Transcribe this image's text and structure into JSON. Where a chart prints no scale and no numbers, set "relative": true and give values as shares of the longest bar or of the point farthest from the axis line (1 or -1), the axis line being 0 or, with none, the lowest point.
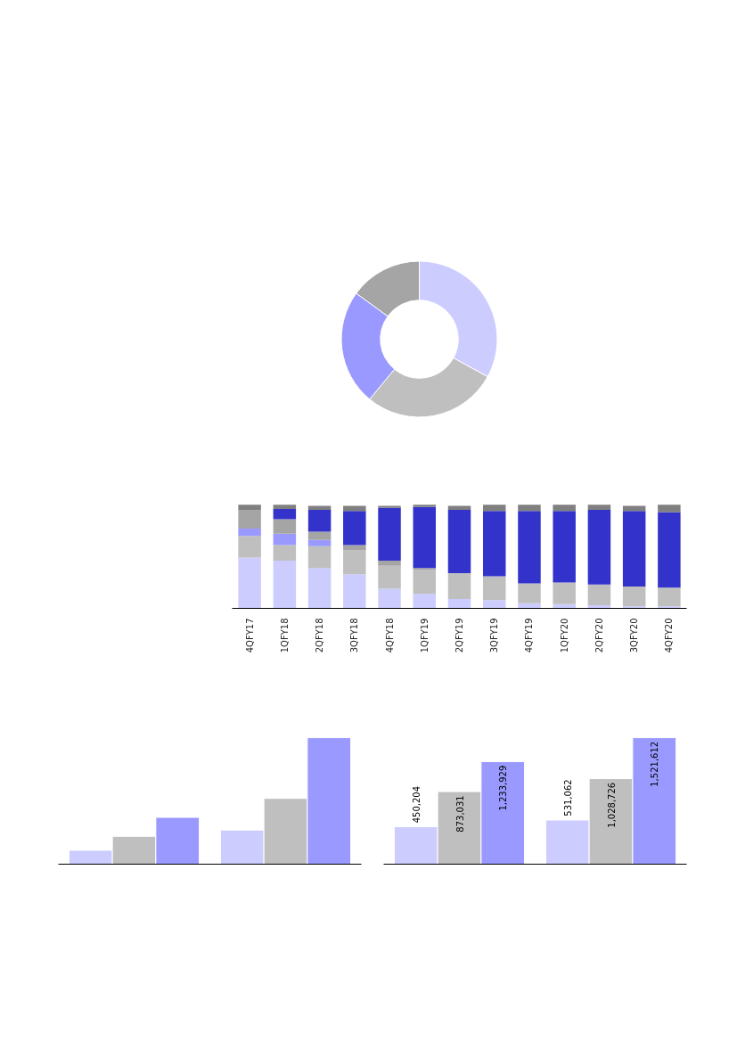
{
  "chart_data": [
    {
      "type": "donut",
      "categories": [
        null,
        null,
        null,
        null
      ],
      "values": [
        33,
        28,
        24,
        15
      ],
      "colors": [
        "#ccccff",
        "#bfbfbf",
        "#9999ff",
        "#a5a5a5"
      ]
    },
    {
      "type": "bar",
      "stacked": true,
      "relative": true,
      "categories": [
        "4QFY17",
        "1QFY18",
        "2QFY18",
        "3QFY18",
        "4QFY18",
        "1QFY19",
        "2QFY19",
        "3QFY19",
        "4QFY19",
        "1QFY20",
        "2QFY20",
        "3QFY20",
        "4QFY20"
      ],
      "series": [
        {
          "color": "#ccccff",
          "values": [
            0.49,
            0.46,
            0.39,
            0.33,
            0.19,
            0.14,
            0.09,
            0.08,
            0.05,
            0.04,
            0.03,
            0.02,
            0.02
          ]
        },
        {
          "color": "#bfbfbf",
          "values": [
            0.21,
            0.15,
            0.21,
            0.23,
            0.22,
            0.23,
            0.25,
            0.23,
            0.19,
            0.21,
            0.2,
            0.19,
            0.18
          ]
        },
        {
          "color": "#9999ff",
          "values": [
            0.07,
            0.11,
            0.06,
            null,
            null,
            null,
            null,
            null,
            null,
            null,
            null,
            null,
            null
          ]
        },
        {
          "color": "#a5a5a5",
          "values": [
            0.18,
            0.14,
            0.08,
            0.05,
            0.05,
            0.02,
            null,
            null,
            null,
            null,
            null,
            null,
            null
          ]
        },
        {
          "color": "#3333cc",
          "values": [
            null,
            0.1,
            0.21,
            0.33,
            0.51,
            0.59,
            0.61,
            0.63,
            0.7,
            0.69,
            0.72,
            0.73,
            0.73
          ]
        },
        {
          "color": "#808080",
          "values": [
            0.05,
            0.04,
            0.04,
            0.05,
            0.02,
            0.02,
            0.04,
            0.06,
            0.06,
            0.06,
            0.05,
            0.05,
            0.07
          ]
        }
      ]
    },
    {
      "type": "bar",
      "relative": true,
      "categories": [
        null,
        null
      ],
      "series": [
        {
          "color": "#ccccff",
          "values": [
            0.11,
            0.27
          ]
        },
        {
          "color": "#bfbfbf",
          "values": [
            0.22,
            0.52
          ]
        },
        {
          "color": "#9999ff",
          "values": [
            0.37,
            1
          ]
        }
      ]
    },
    {
      "type": "bar",
      "categories": [
        null,
        null
      ],
      "series": [
        {
          "color": "#ccccff",
          "values": [
            450204,
            531062
          ],
          "value_labels": [
            "450,204",
            "531,062"
          ]
        },
        {
          "color": "#bfbfbf",
          "values": [
            873031,
            1028726
          ],
          "value_labels": [
            "873,031",
            "1,028,726"
          ]
        },
        {
          "color": "#9999ff",
          "values": [
            1233929,
            1521612
          ],
          "value_labels": [
            "1,233,929",
            "1,521,612"
          ]
        }
      ]
    }
  ]
}
